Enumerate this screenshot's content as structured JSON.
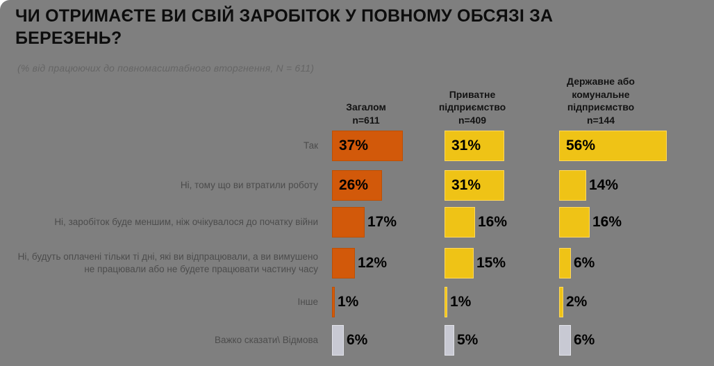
{
  "title": "ЧИ ОТРИМАЄТЕ ВИ СВІЙ ЗАРОБІТОК У ПОВНОМУ ОБСЯЗІ ЗА БЕРЕЗЕНЬ?",
  "subtitle": "(% від працюючих до повномасштабного вторгнення, N = 611)",
  "colors": {
    "panel_background": "#7f7f7f",
    "series_total": "#d2590a",
    "series_total_border": "#bf4f02",
    "series_enterprise": "#efc316",
    "series_enterprise_border": "#ffd95c",
    "neutral_bar": "#c8c9d3",
    "neutral_bar_border": "#e2e3ea",
    "value_text": "#000000",
    "category_text": "#4c4c4c"
  },
  "chart_data": {
    "type": "bar",
    "orientation": "horizontal",
    "unit": "%",
    "title": "ЧИ ОТРИМАЄТЕ ВИ СВІЙ ЗАРОБІТОК У ПОВНОМУ ОБСЯЗІ ЗА БЕРЕЗЕНЬ?",
    "subtitle": "(% від працюючих до повномасштабного вторгнення, N = 611)",
    "categories": [
      "Так",
      "Ні, тому що ви втратили роботу",
      "Ні, заробіток буде меншим, ніж очікувалося до початку війни",
      "Ні, будуть оплачені тільки ті дні, які ви відпрацювали, а ви вимушено не працювали або не будете працювати частину часу",
      "Інше",
      "Важко сказати\\ Відмова"
    ],
    "series": [
      {
        "name": "Загалом n=611",
        "header": "Загалом\nn=611",
        "n": 611,
        "values": [
          37,
          26,
          17,
          12,
          1,
          6
        ]
      },
      {
        "name": "Приватне підприємство n=409",
        "header": "Приватне\nпідприємство\nn=409",
        "n": 409,
        "values": [
          31,
          31,
          16,
          15,
          1,
          5
        ]
      },
      {
        "name": "Державне або комунальне підприємство n=144",
        "header": "Державне або\nкомунальне\nпідприємство\nn=144",
        "n": 144,
        "values": [
          56,
          14,
          16,
          6,
          2,
          6
        ]
      }
    ],
    "neutral_category_index": 5,
    "value_labels": "every bar labeled with percent, inside bar when wide enough otherwise right of bar",
    "xlim": [
      0,
      60
    ],
    "axis": "hidden",
    "grid": false,
    "legend": "none"
  }
}
